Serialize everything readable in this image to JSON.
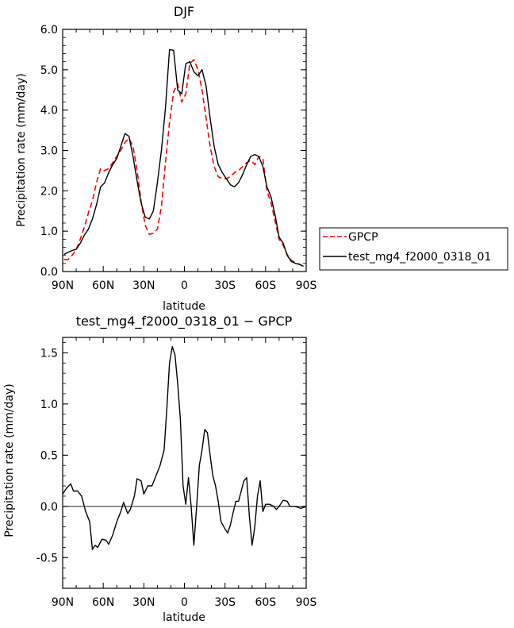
{
  "chart_data": [
    {
      "type": "line",
      "title": "DJF",
      "xlabel": "latitude",
      "ylabel": "Precipitation rate (mm/day)",
      "xlim": [
        -90,
        90
      ],
      "ylim": [
        0,
        6
      ],
      "x_ticks": [
        {
          "value": -90,
          "label": "90N"
        },
        {
          "value": -60,
          "label": "60N"
        },
        {
          "value": -30,
          "label": "30N"
        },
        {
          "value": 0,
          "label": "0"
        },
        {
          "value": 30,
          "label": "30S"
        },
        {
          "value": 60,
          "label": "60S"
        },
        {
          "value": 90,
          "label": "90S"
        }
      ],
      "y_ticks": [
        {
          "value": 0,
          "label": "0.0"
        },
        {
          "value": 1,
          "label": "1.0"
        },
        {
          "value": 2,
          "label": "2.0"
        },
        {
          "value": 3,
          "label": "3.0"
        },
        {
          "value": 4,
          "label": "4.0"
        },
        {
          "value": 5,
          "label": "5.0"
        },
        {
          "value": 6,
          "label": "6.0"
        }
      ],
      "legend_position": "right",
      "series": [
        {
          "name": "GPCP",
          "color": "#ff0000",
          "style": "dashed",
          "points": [
            [
              -89,
              0.3
            ],
            [
              -86,
              0.3
            ],
            [
              -83,
              0.4
            ],
            [
              -80,
              0.55
            ],
            [
              -77,
              0.8
            ],
            [
              -74,
              1.1
            ],
            [
              -71,
              1.45
            ],
            [
              -68,
              1.75
            ],
            [
              -65,
              2.2
            ],
            [
              -62,
              2.55
            ],
            [
              -59,
              2.5
            ],
            [
              -56,
              2.55
            ],
            [
              -53,
              2.7
            ],
            [
              -50,
              2.85
            ],
            [
              -47,
              3.0
            ],
            [
              -44,
              3.2
            ],
            [
              -41,
              3.3
            ],
            [
              -38,
              3.1
            ],
            [
              -35,
              2.5
            ],
            [
              -32,
              1.75
            ],
            [
              -29,
              1.15
            ],
            [
              -26,
              0.92
            ],
            [
              -23,
              0.95
            ],
            [
              -20,
              1.05
            ],
            [
              -17,
              1.6
            ],
            [
              -14,
              2.7
            ],
            [
              -11,
              3.7
            ],
            [
              -8,
              4.45
            ],
            [
              -5,
              4.65
            ],
            [
              -2,
              4.2
            ],
            [
              1,
              4.4
            ],
            [
              4,
              5.15
            ],
            [
              7,
              5.25
            ],
            [
              10,
              5.0
            ],
            [
              13,
              4.5
            ],
            [
              16,
              3.8
            ],
            [
              19,
              3.1
            ],
            [
              22,
              2.6
            ],
            [
              25,
              2.35
            ],
            [
              28,
              2.3
            ],
            [
              31,
              2.3
            ],
            [
              34,
              2.35
            ],
            [
              37,
              2.45
            ],
            [
              40,
              2.5
            ],
            [
              43,
              2.6
            ],
            [
              46,
              2.7
            ],
            [
              49,
              2.75
            ],
            [
              52,
              2.65
            ],
            [
              55,
              2.85
            ],
            [
              58,
              2.8
            ],
            [
              61,
              2.0
            ],
            [
              64,
              1.7
            ],
            [
              67,
              1.25
            ],
            [
              70,
              0.8
            ],
            [
              73,
              0.65
            ],
            [
              76,
              0.42
            ],
            [
              79,
              0.28
            ],
            [
              82,
              0.22
            ],
            [
              85,
              0.18
            ],
            [
              88,
              0.12
            ]
          ]
        },
        {
          "name": "test_mg4_f2000_0318_01",
          "color": "#000000",
          "style": "solid",
          "points": [
            [
              -89,
              0.42
            ],
            [
              -86,
              0.48
            ],
            [
              -83,
              0.52
            ],
            [
              -80,
              0.55
            ],
            [
              -77,
              0.7
            ],
            [
              -74,
              0.9
            ],
            [
              -71,
              1.05
            ],
            [
              -68,
              1.3
            ],
            [
              -65,
              1.65
            ],
            [
              -62,
              2.1
            ],
            [
              -59,
              2.2
            ],
            [
              -56,
              2.45
            ],
            [
              -53,
              2.65
            ],
            [
              -50,
              2.8
            ],
            [
              -47,
              3.1
            ],
            [
              -44,
              3.42
            ],
            [
              -41,
              3.35
            ],
            [
              -38,
              2.85
            ],
            [
              -35,
              2.25
            ],
            [
              -32,
              1.7
            ],
            [
              -29,
              1.35
            ],
            [
              -26,
              1.3
            ],
            [
              -23,
              1.5
            ],
            [
              -20,
              2.2
            ],
            [
              -17,
              3.0
            ],
            [
              -14,
              4.05
            ],
            [
              -11,
              5.5
            ],
            [
              -8,
              5.48
            ],
            [
              -5,
              4.5
            ],
            [
              -2,
              4.4
            ],
            [
              1,
              5.15
            ],
            [
              4,
              5.2
            ],
            [
              7,
              4.95
            ],
            [
              10,
              4.85
            ],
            [
              13,
              5.0
            ],
            [
              16,
              4.6
            ],
            [
              19,
              3.8
            ],
            [
              22,
              3.1
            ],
            [
              25,
              2.65
            ],
            [
              28,
              2.45
            ],
            [
              31,
              2.3
            ],
            [
              34,
              2.15
            ],
            [
              37,
              2.1
            ],
            [
              40,
              2.2
            ],
            [
              43,
              2.4
            ],
            [
              46,
              2.65
            ],
            [
              49,
              2.85
            ],
            [
              52,
              2.9
            ],
            [
              55,
              2.85
            ],
            [
              58,
              2.6
            ],
            [
              61,
              2.1
            ],
            [
              64,
              1.85
            ],
            [
              67,
              1.4
            ],
            [
              70,
              0.85
            ],
            [
              73,
              0.7
            ],
            [
              76,
              0.4
            ],
            [
              79,
              0.25
            ],
            [
              82,
              0.2
            ],
            [
              85,
              0.18
            ],
            [
              88,
              0.13
            ]
          ]
        }
      ]
    },
    {
      "type": "line",
      "title": "test_mg4_f2000_0318_01 − GPCP",
      "xlabel": "latitude",
      "ylabel": "Precipitation rate (mm/day)",
      "xlim": [
        -90,
        90
      ],
      "ylim": [
        -0.8,
        1.65
      ],
      "x_ticks": [
        {
          "value": -90,
          "label": "90N"
        },
        {
          "value": -60,
          "label": "60N"
        },
        {
          "value": -30,
          "label": "30N"
        },
        {
          "value": 0,
          "label": "0"
        },
        {
          "value": 30,
          "label": "30S"
        },
        {
          "value": 60,
          "label": "60S"
        },
        {
          "value": 90,
          "label": "90S"
        }
      ],
      "y_ticks": [
        {
          "value": -0.5,
          "label": "-0.5"
        },
        {
          "value": 0,
          "label": "0.0"
        },
        {
          "value": 0.5,
          "label": "0.5"
        },
        {
          "value": 1.0,
          "label": "1.0"
        },
        {
          "value": 1.5,
          "label": "1.5"
        }
      ],
      "series": [
        {
          "color": "#000000",
          "style": "solid",
          "points": [
            [
              -90,
              0.12
            ],
            [
              -87,
              0.18
            ],
            [
              -84,
              0.22
            ],
            [
              -82,
              0.15
            ],
            [
              -79,
              0.15
            ],
            [
              -76,
              0.1
            ],
            [
              -73,
              -0.05
            ],
            [
              -70,
              -0.15
            ],
            [
              -68,
              -0.42
            ],
            [
              -66,
              -0.38
            ],
            [
              -64,
              -0.4
            ],
            [
              -61,
              -0.32
            ],
            [
              -58,
              -0.33
            ],
            [
              -56,
              -0.37
            ],
            [
              -53,
              -0.28
            ],
            [
              -50,
              -0.15
            ],
            [
              -47,
              -0.05
            ],
            [
              -45,
              0.04
            ],
            [
              -42,
              -0.07
            ],
            [
              -40,
              -0.03
            ],
            [
              -37,
              0.1
            ],
            [
              -35,
              0.27
            ],
            [
              -32,
              0.25
            ],
            [
              -30,
              0.12
            ],
            [
              -27,
              0.2
            ],
            [
              -24,
              0.2
            ],
            [
              -21,
              0.3
            ],
            [
              -18,
              0.4
            ],
            [
              -15,
              0.55
            ],
            [
              -13,
              0.95
            ],
            [
              -11,
              1.4
            ],
            [
              -9,
              1.56
            ],
            [
              -7,
              1.48
            ],
            [
              -5,
              1.2
            ],
            [
              -3,
              0.85
            ],
            [
              -1,
              0.2
            ],
            [
              1,
              0.02
            ],
            [
              3,
              0.28
            ],
            [
              5,
              0.0
            ],
            [
              7,
              -0.38
            ],
            [
              9,
              0.0
            ],
            [
              11,
              0.4
            ],
            [
              13,
              0.55
            ],
            [
              15,
              0.75
            ],
            [
              17,
              0.72
            ],
            [
              19,
              0.5
            ],
            [
              21,
              0.3
            ],
            [
              23,
              0.2
            ],
            [
              25,
              0.05
            ],
            [
              27,
              -0.15
            ],
            [
              30,
              -0.22
            ],
            [
              32,
              -0.26
            ],
            [
              34,
              -0.18
            ],
            [
              36,
              -0.06
            ],
            [
              38,
              0.05
            ],
            [
              40,
              0.05
            ],
            [
              42,
              0.15
            ],
            [
              44,
              0.25
            ],
            [
              46,
              0.28
            ],
            [
              48,
              -0.1
            ],
            [
              50,
              -0.38
            ],
            [
              52,
              -0.2
            ],
            [
              54,
              0.1
            ],
            [
              56,
              0.25
            ],
            [
              58,
              -0.05
            ],
            [
              60,
              0.02
            ],
            [
              63,
              0.02
            ],
            [
              66,
              0.0
            ],
            [
              68,
              -0.03
            ],
            [
              70,
              0.0
            ],
            [
              73,
              0.06
            ],
            [
              76,
              0.05
            ],
            [
              78,
              0.0
            ],
            [
              82,
              0.0
            ],
            [
              86,
              -0.02
            ],
            [
              90,
              0.0
            ]
          ]
        }
      ]
    }
  ]
}
